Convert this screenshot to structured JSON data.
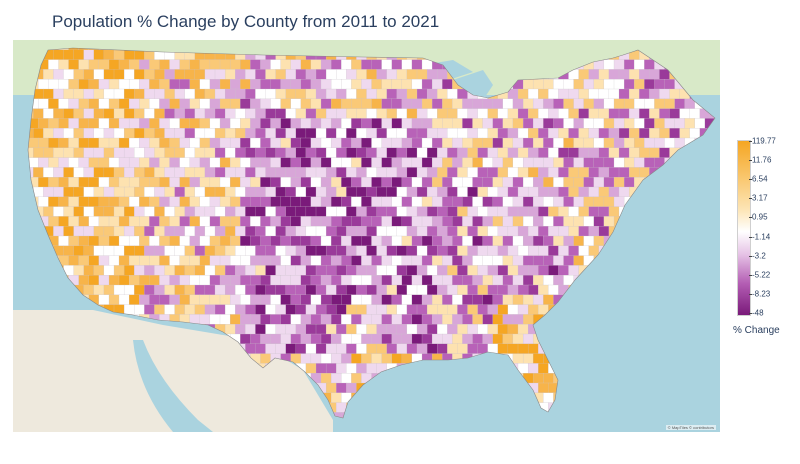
{
  "title": "Population % Change by County from 2011 to 2021",
  "colors": {
    "water": "#aad3df",
    "land": "#eee9dd",
    "canada": "#d8e9c8",
    "high": "#f5a623",
    "mid": "#ffffff",
    "low": "#7a1a7a"
  },
  "colorbar": {
    "title": "% Change",
    "ticks": [
      "119.77",
      "11.76",
      "6.54",
      "3.17",
      "0.95",
      "-1.14",
      "-3.2",
      "-5.22",
      "-8.23",
      "-48"
    ]
  },
  "attribution": "© MapTiles © contributors"
}
